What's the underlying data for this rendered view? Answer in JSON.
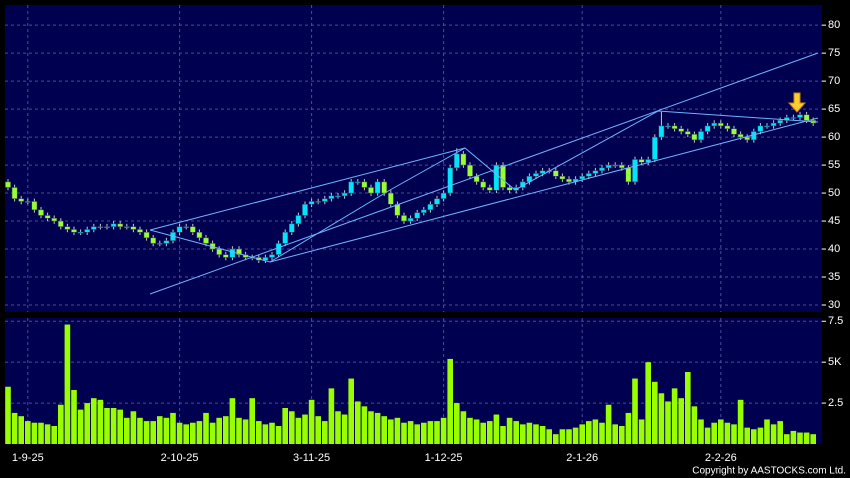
{
  "chart_data": {
    "type": "candlestick",
    "categories": [
      null,
      null,
      null,
      "1-9-25",
      null,
      null,
      null,
      null,
      null,
      null,
      null,
      null,
      null,
      null,
      null,
      null,
      null,
      null,
      null,
      null,
      null,
      null,
      null,
      null,
      null,
      null,
      "2-10-25",
      null,
      null,
      null,
      null,
      null,
      null,
      null,
      null,
      null,
      null,
      null,
      null,
      null,
      null,
      null,
      null,
      null,
      null,
      null,
      "3-11-25",
      null,
      null,
      null,
      null,
      null,
      null,
      null,
      null,
      null,
      null,
      null,
      null,
      null,
      null,
      null,
      null,
      null,
      null,
      null,
      "1-12-25",
      null,
      null,
      null,
      null,
      null,
      null,
      null,
      null,
      null,
      null,
      null,
      null,
      null,
      null,
      null,
      null,
      null,
      null,
      null,
      null,
      "2-1-26",
      null,
      null,
      null,
      null,
      null,
      null,
      null,
      null,
      null,
      null,
      null,
      null,
      null,
      null,
      null,
      null,
      null,
      null,
      null,
      null,
      "2-2-26",
      null,
      null,
      null,
      null,
      null,
      null,
      null,
      null,
      null,
      null,
      null,
      null,
      null,
      null
    ],
    "open": [
      52,
      51,
      49,
      48.5,
      48.5,
      47,
      46,
      45.5,
      45,
      44,
      43.5,
      43,
      43,
      43.5,
      44,
      44,
      44,
      44.5,
      44,
      44,
      43.5,
      43,
      42,
      41,
      41,
      41.5,
      43,
      44,
      44,
      43,
      42,
      41,
      40,
      39,
      38.5,
      40,
      39,
      38.5,
      38.5,
      38,
      38.5,
      39,
      41,
      43,
      44.5,
      46,
      48,
      48.5,
      48.5,
      49,
      49.5,
      49.5,
      50,
      52,
      52,
      51,
      50,
      52,
      50,
      48,
      46,
      45,
      45.5,
      46.5,
      47,
      48,
      49,
      50,
      54.5,
      57,
      55,
      53,
      52,
      51,
      50.5,
      55,
      51,
      50.5,
      51,
      52,
      53,
      53.5,
      54,
      54,
      53,
      52.5,
      52,
      52.5,
      53,
      53.5,
      54,
      54.5,
      55,
      55,
      54.5,
      52,
      56,
      55.5,
      56,
      60,
      62,
      62,
      61.5,
      61,
      60.5,
      59.5,
      61,
      62,
      62.5,
      62,
      61.5,
      60.5,
      60,
      59.5,
      61,
      62,
      62,
      62.5,
      63,
      63.5,
      63.5,
      64,
      63
    ],
    "high": [
      52.5,
      51.5,
      49.5,
      49,
      49,
      47.5,
      46.5,
      46,
      45.5,
      44.5,
      44,
      43.5,
      44,
      44.5,
      44.5,
      44.5,
      45,
      45,
      44.5,
      44.5,
      44,
      43.5,
      42.5,
      41.5,
      42,
      43.5,
      44.5,
      44.5,
      44.5,
      43.5,
      42.5,
      41.5,
      40.5,
      39.5,
      40.5,
      40.5,
      39.5,
      39,
      39,
      39,
      39.5,
      41.5,
      43.5,
      45,
      46.5,
      48.5,
      49,
      49,
      49.5,
      50,
      50,
      50.5,
      52.5,
      52.5,
      52.5,
      51.5,
      52.5,
      52.5,
      50.5,
      48.5,
      46.5,
      46,
      47,
      47.5,
      48.5,
      49.5,
      50.5,
      55,
      58,
      57.5,
      55.5,
      53.5,
      52.5,
      51.5,
      55.5,
      55.5,
      51.5,
      51.5,
      52.5,
      53.5,
      54,
      54.5,
      54.5,
      54.5,
      53.5,
      53,
      53,
      53.5,
      54,
      54.5,
      55,
      55.5,
      55.5,
      55.5,
      55,
      56.5,
      56.5,
      56.5,
      60.5,
      64.5,
      62.5,
      62.5,
      62,
      61.5,
      61,
      61.5,
      62.5,
      63,
      63,
      62.5,
      62,
      61,
      60.5,
      61.5,
      62.5,
      62.5,
      63,
      63.5,
      64,
      64,
      64.5,
      64.5,
      63.5
    ],
    "low": [
      50.5,
      48.5,
      48,
      48,
      46.5,
      45.5,
      45,
      44.5,
      43.5,
      43,
      42.5,
      42.5,
      42.5,
      43,
      43.5,
      43.5,
      43.5,
      43.5,
      43.5,
      43,
      42.5,
      41.5,
      40.5,
      40.5,
      40.5,
      41,
      42.5,
      43.5,
      42.5,
      41.5,
      40.5,
      39.5,
      38.5,
      38,
      38,
      38.5,
      38,
      38,
      37.5,
      37.5,
      38,
      38.5,
      40.5,
      42.5,
      44,
      45.5,
      47.5,
      48,
      48,
      48.5,
      49,
      49,
      49.5,
      51.5,
      50.5,
      49.5,
      49.5,
      49.5,
      47.5,
      45.5,
      44.5,
      44.5,
      45,
      46,
      46.5,
      47.5,
      48.5,
      49.5,
      54,
      54.5,
      52.5,
      51.5,
      50.5,
      50,
      50,
      50.5,
      50,
      50,
      50.5,
      51.5,
      52.5,
      53,
      53.5,
      52.5,
      52,
      51.5,
      51.5,
      52,
      52.5,
      53,
      53.5,
      54,
      54.5,
      54,
      51.5,
      51.5,
      55,
      55,
      55.5,
      59.5,
      61.5,
      61,
      60.5,
      60,
      59,
      59,
      60.5,
      61.5,
      61.5,
      61,
      60,
      59.5,
      59,
      59,
      60.5,
      61.5,
      61.5,
      62,
      62.5,
      63,
      63,
      62.5,
      62
    ],
    "close": [
      51,
      49,
      48.5,
      48.5,
      47,
      46,
      45.5,
      45,
      44,
      43.5,
      43,
      43,
      43.5,
      44,
      44,
      44,
      44.5,
      44,
      44,
      43.5,
      43,
      42,
      41,
      41,
      41.5,
      43,
      44,
      44,
      43,
      42,
      41,
      40,
      39,
      38.5,
      40,
      39,
      38.5,
      38.5,
      38,
      38.5,
      39,
      41,
      43,
      44.5,
      46,
      48,
      48.5,
      48.5,
      49,
      49.5,
      49.5,
      50,
      52,
      52,
      51,
      50,
      52,
      50,
      48,
      46,
      45,
      45.5,
      46.5,
      47,
      48,
      49,
      50,
      54.5,
      57,
      55,
      53,
      52,
      51,
      50.5,
      55,
      51,
      50.5,
      51,
      52,
      53,
      53.5,
      54,
      54,
      53,
      52.5,
      52,
      52.5,
      53,
      53.5,
      54,
      54.5,
      55,
      55,
      54.5,
      52,
      56,
      55.5,
      56,
      60,
      62,
      62,
      61.5,
      61,
      60.5,
      59.5,
      61,
      62,
      62.5,
      62,
      61.5,
      60.5,
      60,
      59.5,
      61,
      62,
      62,
      62.5,
      63,
      63.5,
      63.5,
      64,
      63,
      62.5
    ],
    "volume": [
      3.5,
      1.9,
      1.7,
      1.4,
      1.3,
      1.3,
      1.2,
      1.1,
      2.4,
      7.3,
      3.3,
      2.1,
      2.5,
      2.8,
      2.7,
      2.2,
      2.2,
      2.1,
      1.6,
      2.0,
      1.6,
      1.4,
      1.4,
      1.7,
      1.6,
      1.9,
      1.3,
      1.2,
      1.3,
      1.4,
      1.9,
      1.3,
      1.6,
      1.7,
      2.8,
      1.6,
      1.5,
      2.8,
      1.4,
      1.2,
      1.3,
      1.1,
      2.2,
      2.0,
      1.6,
      1.8,
      2.7,
      1.7,
      1.4,
      3.4,
      2.0,
      1.8,
      4.0,
      2.6,
      2.3,
      2.0,
      1.9,
      1.7,
      1.5,
      1.6,
      1.3,
      1.4,
      1.2,
      1.3,
      1.4,
      1.4,
      1.6,
      5.2,
      2.5,
      2.0,
      1.6,
      1.5,
      1.3,
      1.4,
      1.8,
      1.1,
      1.6,
      1.4,
      1.2,
      1.3,
      1.2,
      1.1,
      0.9,
      0.6,
      0.9,
      0.9,
      1.0,
      1.2,
      1.4,
      1.5,
      1.3,
      2.4,
      1.2,
      1.1,
      1.9,
      4.0,
      1.5,
      5.0,
      3.8,
      3.1,
      2.6,
      3.4,
      2.8,
      4.4,
      2.3,
      1.5,
      1.0,
      1.3,
      1.5,
      1.3,
      1.2,
      2.7,
      1.0,
      0.9,
      1.0,
      1.5,
      1.2,
      1.4,
      0.6,
      0.8,
      0.7,
      0.7,
      0.6
    ],
    "ylim": [
      28.75,
      83.6
    ],
    "yticks": [
      30,
      35,
      40,
      45,
      50,
      55,
      60,
      65,
      70,
      75,
      80
    ],
    "volume_ylim": [
      0,
      7.7
    ],
    "volume_yticks": [
      2.5,
      {
        "value": 5,
        "label": "5K"
      },
      7.5
    ],
    "up_color": "#00e5ff",
    "down_color": "#99ff33",
    "volume_color": "#99ff00",
    "grid": true,
    "copyright": "Copyright by AASTOCKS.com Ltd."
  }
}
